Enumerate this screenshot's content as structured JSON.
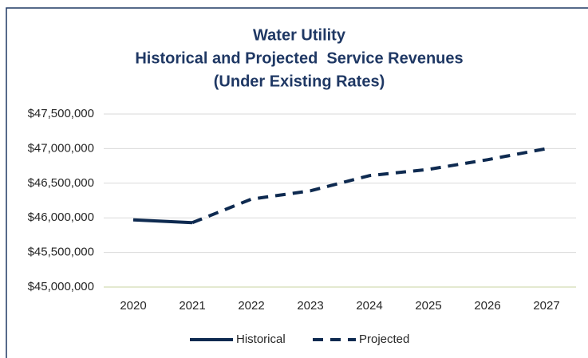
{
  "chart_data": {
    "type": "line",
    "title": [
      "Water Utility",
      "Historical and Projected  Service Revenues",
      "(Under Existing Rates)"
    ],
    "categories": [
      "2020",
      "2021",
      "2022",
      "2023",
      "2024",
      "2025",
      "2026",
      "2027"
    ],
    "series": [
      {
        "name": "Historical",
        "color": "#0e2a50",
        "dash": false,
        "values": [
          45970000,
          45930000,
          null,
          null,
          null,
          null,
          null,
          null
        ]
      },
      {
        "name": "Projected",
        "color": "#0e2a50",
        "dash": true,
        "values": [
          null,
          45930000,
          46270000,
          46390000,
          46610000,
          46700000,
          46840000,
          47000000
        ]
      }
    ],
    "ylim": [
      45000000,
      47500000
    ],
    "yticks": [
      {
        "value": 45000000,
        "label": "$45,000,000"
      },
      {
        "value": 45500000,
        "label": "$45,500,000"
      },
      {
        "value": 46000000,
        "label": "$46,000,000"
      },
      {
        "value": 46500000,
        "label": "$46,500,000"
      },
      {
        "value": 47000000,
        "label": "$47,000,000"
      },
      {
        "value": 47500000,
        "label": "$47,500,000"
      }
    ],
    "grid": true,
    "legend": "bottom"
  }
}
